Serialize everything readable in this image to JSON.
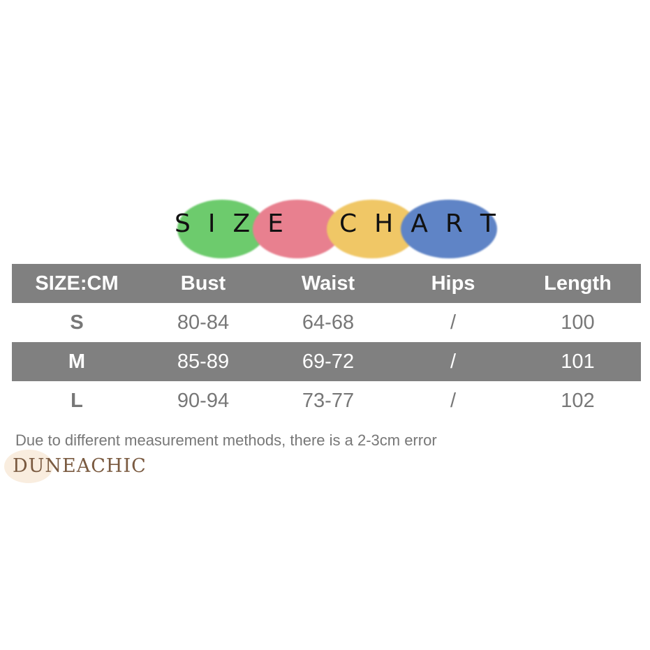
{
  "title": {
    "letters_left": [
      "S",
      "I",
      "Z",
      "E"
    ],
    "letters_right": [
      "C",
      "H",
      "A",
      "R",
      "T"
    ],
    "text": "SIZE CHART",
    "circle_colors": [
      "#6dcb6d",
      "#e8808f",
      "#f0c766",
      "#5f84c6"
    ]
  },
  "table": {
    "headers": [
      "SIZE:CM",
      "Bust",
      "Waist",
      "Hips",
      "Length"
    ],
    "rows": [
      [
        "S",
        "80-84",
        "64-68",
        "/",
        "100"
      ],
      [
        "M",
        "85-89",
        "69-72",
        "/",
        "101"
      ],
      [
        "L",
        "90-94",
        "73-77",
        "/",
        "102"
      ]
    ],
    "colors": {
      "band": "#808080",
      "text": "#777777"
    }
  },
  "note": "Due to different measurement methods, there is a 2-3cm error",
  "watermark": "DUNEACHIC"
}
